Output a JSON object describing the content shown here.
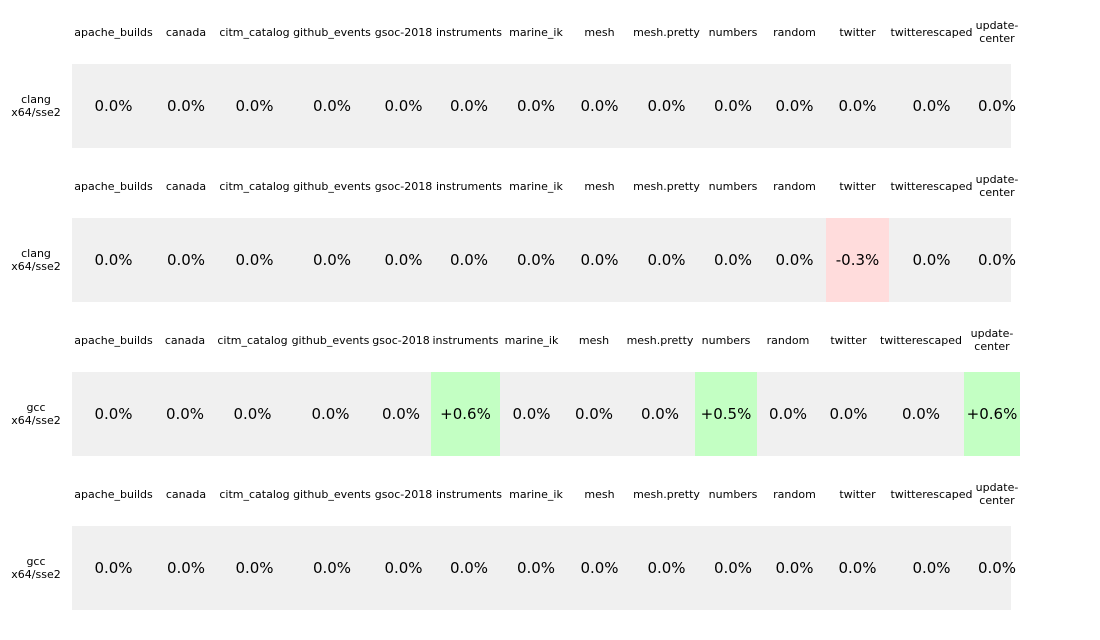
{
  "chart_data": {
    "type": "table",
    "colors": {
      "neutral": "#f0f0f0",
      "positive": "#c3ffc3",
      "negative": "#ffdcdc"
    },
    "panels": [
      {
        "row_label": [
          "clang",
          "x64/sse2"
        ],
        "columns": [
          "apache_builds",
          "canada",
          "citm_catalog",
          "github_events",
          "gsoc-2018",
          "instruments",
          "marine_ik",
          "mesh",
          "mesh.pretty",
          "numbers",
          "random",
          "twitter",
          "twitterescaped",
          "update-center"
        ],
        "values": [
          "0.0%",
          "0.0%",
          "0.0%",
          "0.0%",
          "0.0%",
          "0.0%",
          "0.0%",
          "0.0%",
          "0.0%",
          "0.0%",
          "0.0%",
          "0.0%",
          "0.0%",
          "0.0%"
        ]
      },
      {
        "row_label": [
          "clang",
          "x64/sse2"
        ],
        "columns": [
          "apache_builds",
          "canada",
          "citm_catalog",
          "github_events",
          "gsoc-2018",
          "instruments",
          "marine_ik",
          "mesh",
          "mesh.pretty",
          "numbers",
          "random",
          "twitter",
          "twitterescaped",
          "update-center"
        ],
        "values": [
          "0.0%",
          "0.0%",
          "0.0%",
          "0.0%",
          "0.0%",
          "0.0%",
          "0.0%",
          "0.0%",
          "0.0%",
          "0.0%",
          "0.0%",
          "-0.3%",
          "0.0%",
          "0.0%"
        ]
      },
      {
        "row_label": [
          "gcc",
          "x64/sse2"
        ],
        "columns": [
          "apache_builds",
          "canada",
          "citm_catalog",
          "github_events",
          "gsoc-2018",
          "instruments",
          "marine_ik",
          "mesh",
          "mesh.pretty",
          "numbers",
          "random",
          "twitter",
          "twitterescaped",
          "update-center"
        ],
        "values": [
          "0.0%",
          "0.0%",
          "0.0%",
          "0.0%",
          "0.0%",
          "+0.6%",
          "0.0%",
          "0.0%",
          "0.0%",
          "+0.5%",
          "0.0%",
          "0.0%",
          "0.0%",
          "+0.6%"
        ]
      },
      {
        "row_label": [
          "gcc",
          "x64/sse2"
        ],
        "columns": [
          "apache_builds",
          "canada",
          "citm_catalog",
          "github_events",
          "gsoc-2018",
          "instruments",
          "marine_ik",
          "mesh",
          "mesh.pretty",
          "numbers",
          "random",
          "twitter",
          "twitterescaped",
          "update-center"
        ],
        "values": [
          "0.0%",
          "0.0%",
          "0.0%",
          "0.0%",
          "0.0%",
          "0.0%",
          "0.0%",
          "0.0%",
          "0.0%",
          "0.0%",
          "0.0%",
          "0.0%",
          "0.0%",
          "0.0%"
        ]
      }
    ]
  }
}
